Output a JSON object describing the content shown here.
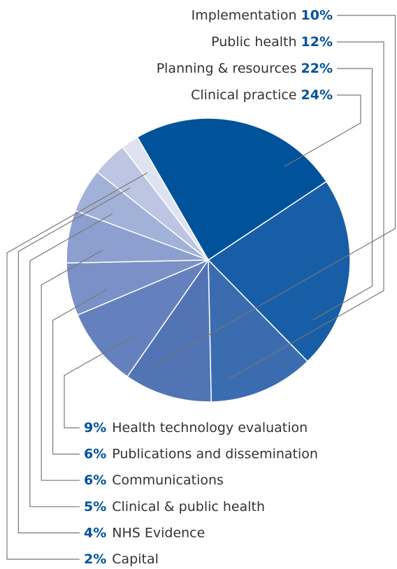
{
  "chart_data": {
    "type": "pie",
    "categories": [
      "Clinical practice",
      "Planning & resources",
      "Public health",
      "Implementation",
      "Health technology evaluation",
      "Publications and dissemination",
      "Communications",
      "Clinical & public health",
      "NHS Evidence",
      "Capital"
    ],
    "values": [
      24,
      22,
      12,
      10,
      9,
      6,
      6,
      5,
      4,
      2
    ],
    "value_labels": [
      "24%",
      "22%",
      "12%",
      "10%",
      "9%",
      "6%",
      "6%",
      "5%",
      "4%",
      "2%"
    ],
    "colors": [
      "#00529b",
      "#175ea7",
      "#3b6cb0",
      "#5274b5",
      "#6581bd",
      "#7a90c6",
      "#8c9fce",
      "#a2b1d7",
      "#bcc6e3",
      "#dfe3f1"
    ]
  }
}
